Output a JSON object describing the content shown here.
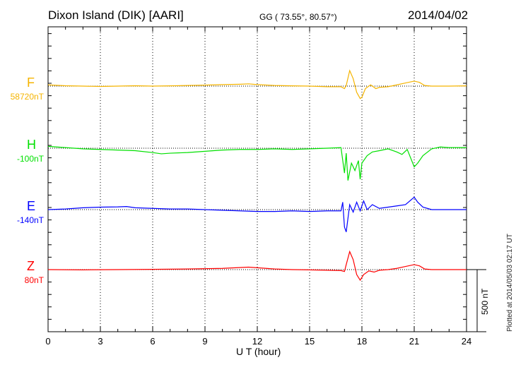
{
  "chart_data": {
    "type": "line",
    "title": "Dixon Island (DIK)  [AARI]",
    "coords": "GG ( 73.55°,  80.57°)",
    "date": "2014/04/02",
    "xlabel": "U T (hour)",
    "xlim": [
      0,
      24
    ],
    "xticks": [
      "0",
      "3",
      "6",
      "9",
      "12",
      "15",
      "18",
      "21",
      "24"
    ],
    "scale_label": "500 nT",
    "scale_nT": 500,
    "plotted_note": "Plotted at 2014/05/03 02:17 UT",
    "grid": "dotted vertical every 3 h",
    "series": [
      {
        "name": "F",
        "baseline_label": "58720nT",
        "color": "#f5b400",
        "points": [
          [
            0,
            10
          ],
          [
            1,
            3
          ],
          [
            2,
            0
          ],
          [
            3,
            -3
          ],
          [
            4,
            0
          ],
          [
            5,
            3
          ],
          [
            6,
            0
          ],
          [
            7,
            2
          ],
          [
            8,
            5
          ],
          [
            9,
            8
          ],
          [
            10,
            12
          ],
          [
            11,
            15
          ],
          [
            11.5,
            18
          ],
          [
            12,
            12
          ],
          [
            13,
            5
          ],
          [
            14,
            2
          ],
          [
            15,
            0
          ],
          [
            16,
            -5
          ],
          [
            16.8,
            -5
          ],
          [
            17,
            -20
          ],
          [
            17.1,
            5
          ],
          [
            17.3,
            125
          ],
          [
            17.5,
            60
          ],
          [
            17.7,
            -50
          ],
          [
            17.9,
            -100
          ],
          [
            18,
            -90
          ],
          [
            18.2,
            -20
          ],
          [
            18.5,
            10
          ],
          [
            18.8,
            -20
          ],
          [
            19,
            -10
          ],
          [
            19.5,
            -5
          ],
          [
            20,
            10
          ],
          [
            20.5,
            25
          ],
          [
            21,
            40
          ],
          [
            21.3,
            30
          ],
          [
            21.6,
            5
          ],
          [
            22,
            0
          ],
          [
            23,
            0
          ],
          [
            24,
            2
          ]
        ]
      },
      {
        "name": "H",
        "baseline_label": "-100nT",
        "color": "#00e000",
        "points": [
          [
            0,
            15
          ],
          [
            1,
            5
          ],
          [
            2,
            -5
          ],
          [
            3,
            -10
          ],
          [
            4,
            -15
          ],
          [
            5,
            -20
          ],
          [
            6,
            -35
          ],
          [
            6.5,
            -45
          ],
          [
            7,
            -40
          ],
          [
            8,
            -35
          ],
          [
            9,
            -25
          ],
          [
            10,
            -15
          ],
          [
            11,
            -10
          ],
          [
            12,
            -10
          ],
          [
            13,
            -5
          ],
          [
            14,
            -10
          ],
          [
            15,
            -5
          ],
          [
            16,
            0
          ],
          [
            16.8,
            5
          ],
          [
            17,
            -200
          ],
          [
            17.1,
            -40
          ],
          [
            17.2,
            -260
          ],
          [
            17.4,
            -120
          ],
          [
            17.6,
            -180
          ],
          [
            17.8,
            -100
          ],
          [
            17.9,
            -250
          ],
          [
            18,
            -120
          ],
          [
            18.3,
            -60
          ],
          [
            18.6,
            -30
          ],
          [
            19,
            -20
          ],
          [
            19.5,
            -5
          ],
          [
            20,
            -30
          ],
          [
            20.3,
            -50
          ],
          [
            20.6,
            -10
          ],
          [
            21,
            -150
          ],
          [
            21.2,
            -120
          ],
          [
            21.5,
            -60
          ],
          [
            22,
            -5
          ],
          [
            22.5,
            10
          ],
          [
            23,
            5
          ],
          [
            24,
            5
          ]
        ]
      },
      {
        "name": "E",
        "baseline_label": "-140nT",
        "color": "#0000ff",
        "points": [
          [
            0,
            0
          ],
          [
            1,
            5
          ],
          [
            2,
            15
          ],
          [
            3,
            20
          ],
          [
            4,
            22
          ],
          [
            4.5,
            25
          ],
          [
            5,
            15
          ],
          [
            6,
            10
          ],
          [
            7,
            5
          ],
          [
            8,
            5
          ],
          [
            9,
            0
          ],
          [
            10,
            -5
          ],
          [
            11,
            -10
          ],
          [
            12,
            -15
          ],
          [
            13,
            -15
          ],
          [
            14,
            -10
          ],
          [
            15,
            -15
          ],
          [
            16,
            -10
          ],
          [
            16.8,
            -10
          ],
          [
            16.9,
            60
          ],
          [
            17,
            -140
          ],
          [
            17.1,
            -180
          ],
          [
            17.3,
            40
          ],
          [
            17.5,
            -20
          ],
          [
            17.7,
            60
          ],
          [
            17.9,
            -10
          ],
          [
            18.1,
            70
          ],
          [
            18.3,
            0
          ],
          [
            18.6,
            40
          ],
          [
            19,
            10
          ],
          [
            19.5,
            20
          ],
          [
            20,
            30
          ],
          [
            20.5,
            40
          ],
          [
            21,
            100
          ],
          [
            21.2,
            60
          ],
          [
            21.5,
            20
          ],
          [
            22,
            0
          ],
          [
            23,
            0
          ],
          [
            24,
            0
          ]
        ]
      },
      {
        "name": "Z",
        "baseline_label": "80nT",
        "color": "#ff0000",
        "points": [
          [
            0,
            0
          ],
          [
            2,
            -2
          ],
          [
            4,
            0
          ],
          [
            6,
            2
          ],
          [
            8,
            5
          ],
          [
            10,
            10
          ],
          [
            11.5,
            20
          ],
          [
            12,
            15
          ],
          [
            13,
            5
          ],
          [
            14,
            0
          ],
          [
            15,
            -2
          ],
          [
            16,
            -5
          ],
          [
            16.8,
            -8
          ],
          [
            17,
            -15
          ],
          [
            17.1,
            40
          ],
          [
            17.3,
            145
          ],
          [
            17.5,
            80
          ],
          [
            17.7,
            -40
          ],
          [
            17.9,
            -85
          ],
          [
            18.1,
            -40
          ],
          [
            18.4,
            -10
          ],
          [
            18.7,
            -20
          ],
          [
            19,
            -5
          ],
          [
            19.5,
            0
          ],
          [
            20,
            10
          ],
          [
            20.5,
            25
          ],
          [
            21,
            40
          ],
          [
            21.3,
            30
          ],
          [
            21.6,
            5
          ],
          [
            22,
            0
          ],
          [
            24,
            0
          ]
        ]
      }
    ]
  }
}
